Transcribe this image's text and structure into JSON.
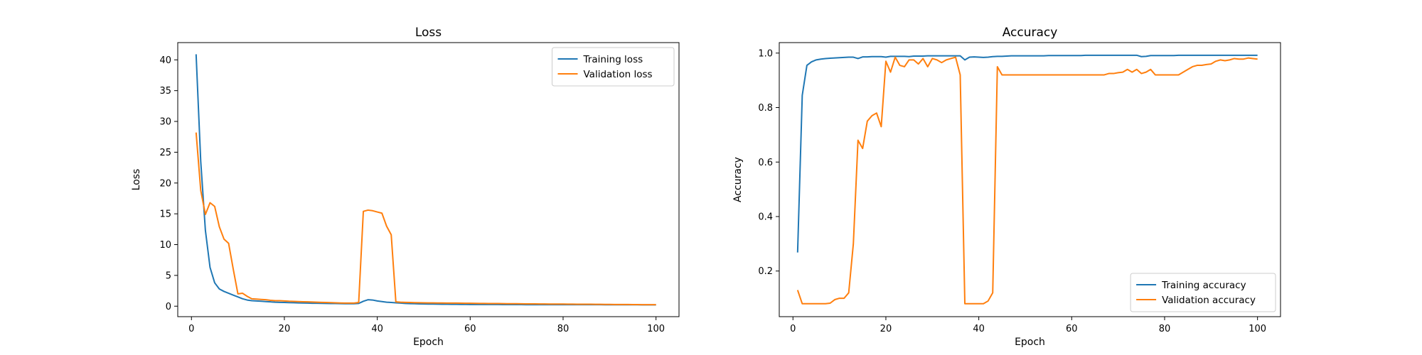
{
  "chart_data": [
    {
      "type": "line",
      "title": "Loss",
      "xlabel": "Epoch",
      "ylabel": "Loss",
      "xlim": [
        -2.95,
        104.95
      ],
      "ylim": [
        -1.7,
        42.8
      ],
      "xticks": [
        0,
        20,
        40,
        60,
        80,
        100
      ],
      "yticks": [
        0,
        5,
        10,
        15,
        20,
        25,
        30,
        35,
        40
      ],
      "grid": false,
      "legend": "top-right",
      "series": [
        {
          "name": "Training loss",
          "color": "#1f77b4",
          "x": [
            1,
            2,
            3,
            4,
            5,
            6,
            7,
            8,
            9,
            10,
            11,
            12,
            13,
            14,
            15,
            16,
            17,
            18,
            19,
            20,
            21,
            22,
            23,
            24,
            25,
            26,
            27,
            28,
            29,
            30,
            31,
            32,
            33,
            34,
            35,
            36,
            37,
            38,
            39,
            40,
            41,
            42,
            43,
            44,
            45,
            46,
            47,
            48,
            49,
            50,
            51,
            52,
            53,
            54,
            55,
            56,
            57,
            58,
            59,
            60,
            61,
            62,
            63,
            64,
            65,
            66,
            67,
            68,
            69,
            70,
            71,
            72,
            73,
            74,
            75,
            76,
            77,
            78,
            79,
            80,
            81,
            82,
            83,
            84,
            85,
            86,
            87,
            88,
            89,
            90,
            91,
            92,
            93,
            94,
            95,
            96,
            97,
            98,
            99,
            100
          ],
          "y": [
            40.9,
            23.5,
            12.3,
            6.3,
            3.8,
            2.8,
            2.4,
            2.1,
            1.8,
            1.5,
            1.2,
            1.0,
            0.9,
            0.85,
            0.8,
            0.75,
            0.7,
            0.65,
            0.62,
            0.6,
            0.58,
            0.56,
            0.54,
            0.52,
            0.5,
            0.48,
            0.47,
            0.46,
            0.45,
            0.44,
            0.43,
            0.42,
            0.41,
            0.4,
            0.4,
            0.45,
            0.8,
            1.05,
            1.0,
            0.85,
            0.75,
            0.65,
            0.6,
            0.55,
            0.5,
            0.45,
            0.42,
            0.4,
            0.38,
            0.36,
            0.35,
            0.34,
            0.33,
            0.32,
            0.31,
            0.3,
            0.3,
            0.29,
            0.29,
            0.28,
            0.28,
            0.28,
            0.27,
            0.27,
            0.27,
            0.27,
            0.26,
            0.26,
            0.26,
            0.26,
            0.26,
            0.25,
            0.25,
            0.25,
            0.25,
            0.25,
            0.25,
            0.25,
            0.25,
            0.24,
            0.24,
            0.24,
            0.24,
            0.24,
            0.24,
            0.24,
            0.24,
            0.24,
            0.23,
            0.23,
            0.23,
            0.23,
            0.23,
            0.23,
            0.23,
            0.23,
            0.22,
            0.22,
            0.22,
            0.22
          ]
        },
        {
          "name": "Validation loss",
          "color": "#ff7f0e",
          "x": [
            1,
            2,
            3,
            4,
            5,
            6,
            7,
            8,
            9,
            10,
            11,
            12,
            13,
            14,
            15,
            16,
            17,
            18,
            19,
            20,
            21,
            22,
            23,
            24,
            25,
            26,
            27,
            28,
            29,
            30,
            31,
            32,
            33,
            34,
            35,
            36,
            37,
            38,
            39,
            40,
            41,
            42,
            43,
            44,
            45,
            46,
            47,
            48,
            49,
            50,
            51,
            52,
            53,
            54,
            55,
            56,
            57,
            58,
            59,
            60,
            61,
            62,
            63,
            64,
            65,
            66,
            67,
            68,
            69,
            70,
            71,
            72,
            73,
            74,
            75,
            76,
            77,
            78,
            79,
            80,
            81,
            82,
            83,
            84,
            85,
            86,
            87,
            88,
            89,
            90,
            91,
            92,
            93,
            94,
            95,
            96,
            97,
            98,
            99,
            100
          ],
          "y": [
            28.2,
            18.8,
            14.9,
            16.8,
            16.2,
            12.9,
            10.9,
            10.2,
            6.0,
            2.0,
            2.1,
            1.6,
            1.2,
            1.15,
            1.1,
            1.05,
            0.95,
            0.9,
            0.9,
            0.85,
            0.8,
            0.78,
            0.75,
            0.72,
            0.7,
            0.68,
            0.65,
            0.62,
            0.6,
            0.58,
            0.55,
            0.52,
            0.5,
            0.5,
            0.5,
            0.6,
            15.4,
            15.6,
            15.5,
            15.3,
            15.1,
            13.0,
            11.6,
            0.7,
            0.65,
            0.62,
            0.6,
            0.58,
            0.56,
            0.55,
            0.54,
            0.53,
            0.52,
            0.52,
            0.51,
            0.5,
            0.5,
            0.49,
            0.48,
            0.47,
            0.46,
            0.45,
            0.45,
            0.44,
            0.44,
            0.43,
            0.42,
            0.41,
            0.4,
            0.4,
            0.39,
            0.38,
            0.37,
            0.37,
            0.36,
            0.36,
            0.35,
            0.35,
            0.34,
            0.34,
            0.33,
            0.33,
            0.32,
            0.32,
            0.31,
            0.31,
            0.3,
            0.3,
            0.29,
            0.29,
            0.28,
            0.28,
            0.27,
            0.27,
            0.26,
            0.26,
            0.25,
            0.25,
            0.25,
            0.25
          ]
        }
      ]
    },
    {
      "type": "line",
      "title": "Accuracy",
      "xlabel": "Epoch",
      "ylabel": "Accuracy",
      "xlim": [
        -2.95,
        104.95
      ],
      "ylim": [
        0.0325,
        1.0385
      ],
      "xticks": [
        0,
        20,
        40,
        60,
        80,
        100
      ],
      "yticks": [
        0.2,
        0.4,
        0.6,
        0.8,
        1.0
      ],
      "grid": false,
      "legend": "bottom-right",
      "series": [
        {
          "name": "Training accuracy",
          "color": "#1f77b4",
          "x": [
            1,
            2,
            3,
            4,
            5,
            6,
            7,
            8,
            9,
            10,
            11,
            12,
            13,
            14,
            15,
            16,
            17,
            18,
            19,
            20,
            21,
            22,
            23,
            24,
            25,
            26,
            27,
            28,
            29,
            30,
            31,
            32,
            33,
            34,
            35,
            36,
            37,
            38,
            39,
            40,
            41,
            42,
            43,
            44,
            45,
            46,
            47,
            48,
            49,
            50,
            51,
            52,
            53,
            54,
            55,
            56,
            57,
            58,
            59,
            60,
            61,
            62,
            63,
            64,
            65,
            66,
            67,
            68,
            69,
            70,
            71,
            72,
            73,
            74,
            75,
            76,
            77,
            78,
            79,
            80,
            81,
            82,
            83,
            84,
            85,
            86,
            87,
            88,
            89,
            90,
            91,
            92,
            93,
            94,
            95,
            96,
            97,
            98,
            99,
            100
          ],
          "y": [
            0.268,
            0.845,
            0.955,
            0.968,
            0.975,
            0.978,
            0.98,
            0.981,
            0.982,
            0.983,
            0.984,
            0.985,
            0.985,
            0.98,
            0.986,
            0.986,
            0.987,
            0.987,
            0.987,
            0.985,
            0.988,
            0.988,
            0.988,
            0.988,
            0.987,
            0.989,
            0.989,
            0.989,
            0.99,
            0.99,
            0.99,
            0.99,
            0.99,
            0.99,
            0.99,
            0.99,
            0.975,
            0.985,
            0.986,
            0.985,
            0.984,
            0.985,
            0.987,
            0.988,
            0.988,
            0.989,
            0.99,
            0.99,
            0.99,
            0.99,
            0.99,
            0.99,
            0.99,
            0.99,
            0.991,
            0.991,
            0.991,
            0.991,
            0.991,
            0.991,
            0.991,
            0.991,
            0.992,
            0.992,
            0.992,
            0.992,
            0.992,
            0.992,
            0.992,
            0.992,
            0.992,
            0.992,
            0.992,
            0.992,
            0.987,
            0.988,
            0.991,
            0.991,
            0.991,
            0.991,
            0.991,
            0.991,
            0.992,
            0.992,
            0.992,
            0.992,
            0.992,
            0.992,
            0.992,
            0.992,
            0.992,
            0.992,
            0.992,
            0.992,
            0.992,
            0.992,
            0.992,
            0.992,
            0.992,
            0.992
          ]
        },
        {
          "name": "Validation accuracy",
          "color": "#ff7f0e",
          "x": [
            1,
            2,
            3,
            4,
            5,
            6,
            7,
            8,
            9,
            10,
            11,
            12,
            13,
            14,
            15,
            16,
            17,
            18,
            19,
            20,
            21,
            22,
            23,
            24,
            25,
            26,
            27,
            28,
            29,
            30,
            31,
            32,
            33,
            34,
            35,
            36,
            37,
            38,
            39,
            40,
            41,
            42,
            43,
            44,
            45,
            46,
            47,
            48,
            49,
            50,
            51,
            52,
            53,
            54,
            55,
            56,
            57,
            58,
            59,
            60,
            61,
            62,
            63,
            64,
            65,
            66,
            67,
            68,
            69,
            70,
            71,
            72,
            73,
            74,
            75,
            76,
            77,
            78,
            79,
            80,
            81,
            82,
            83,
            84,
            85,
            86,
            87,
            88,
            89,
            90,
            91,
            92,
            93,
            94,
            95,
            96,
            97,
            98,
            99,
            100
          ],
          "y": [
            0.13,
            0.08,
            0.08,
            0.08,
            0.08,
            0.08,
            0.08,
            0.082,
            0.095,
            0.1,
            0.1,
            0.12,
            0.3,
            0.68,
            0.65,
            0.75,
            0.77,
            0.78,
            0.73,
            0.97,
            0.93,
            0.985,
            0.955,
            0.95,
            0.975,
            0.975,
            0.96,
            0.98,
            0.95,
            0.98,
            0.975,
            0.965,
            0.975,
            0.98,
            0.985,
            0.92,
            0.08,
            0.08,
            0.08,
            0.08,
            0.08,
            0.09,
            0.12,
            0.95,
            0.92,
            0.92,
            0.92,
            0.92,
            0.92,
            0.92,
            0.92,
            0.92,
            0.92,
            0.92,
            0.92,
            0.92,
            0.92,
            0.92,
            0.92,
            0.92,
            0.92,
            0.92,
            0.92,
            0.92,
            0.92,
            0.92,
            0.92,
            0.925,
            0.925,
            0.928,
            0.93,
            0.94,
            0.93,
            0.94,
            0.925,
            0.93,
            0.94,
            0.92,
            0.92,
            0.92,
            0.92,
            0.92,
            0.92,
            0.93,
            0.94,
            0.95,
            0.955,
            0.955,
            0.958,
            0.96,
            0.97,
            0.975,
            0.972,
            0.975,
            0.98,
            0.978,
            0.978,
            0.982,
            0.98,
            0.978
          ]
        }
      ]
    }
  ]
}
